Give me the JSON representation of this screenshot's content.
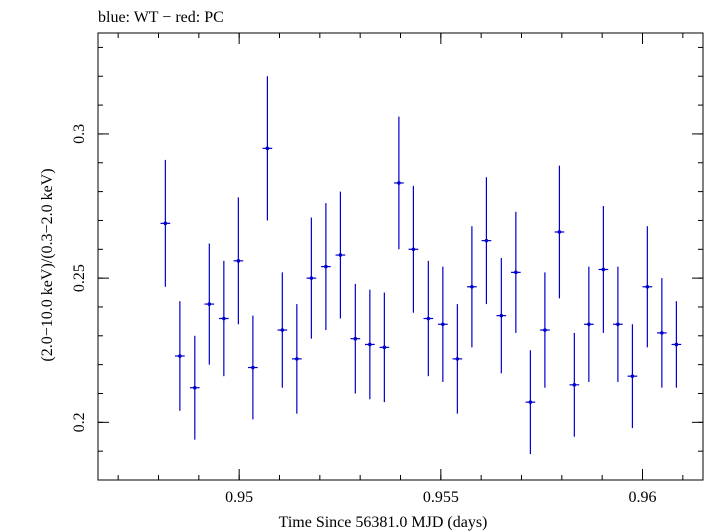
{
  "chart_data": {
    "type": "scatter",
    "title": "blue: WT − red: PC",
    "xlabel": "Time Since 56381.0 MJD (days)",
    "ylabel": "(2.0−10.0 keV)/(0.3−2.0 keV)",
    "xlim": [
      0.9465,
      0.9615
    ],
    "ylim": [
      0.18,
      0.335
    ],
    "x_ticks": [
      {
        "value": 0.95,
        "label": "0.95"
      },
      {
        "value": 0.955,
        "label": "0.955"
      },
      {
        "value": 0.96,
        "label": "0.96"
      }
    ],
    "y_ticks": [
      {
        "value": 0.2,
        "label": "0.2"
      },
      {
        "value": 0.25,
        "label": "0.25"
      },
      {
        "value": 0.3,
        "label": "0.3"
      }
    ],
    "x_minor_step": 0.001,
    "y_minor_step": 0.01,
    "grid": false,
    "series": [
      {
        "color": "#0000cc",
        "points": [
          {
            "x": 0.94817,
            "xerr": 0.00012,
            "y": 0.269,
            "yerr": 0.022
          },
          {
            "x": 0.94853,
            "xerr": 0.00012,
            "y": 0.223,
            "yerr": 0.019
          },
          {
            "x": 0.9489,
            "xerr": 0.00012,
            "y": 0.212,
            "yerr": 0.018
          },
          {
            "x": 0.94926,
            "xerr": 0.00012,
            "y": 0.241,
            "yerr": 0.021
          },
          {
            "x": 0.94962,
            "xerr": 0.00012,
            "y": 0.236,
            "yerr": 0.02
          },
          {
            "x": 0.94998,
            "xerr": 0.00012,
            "y": 0.256,
            "yerr": 0.022
          },
          {
            "x": 0.95034,
            "xerr": 0.00012,
            "y": 0.219,
            "yerr": 0.018
          },
          {
            "x": 0.9507,
            "xerr": 0.00012,
            "y": 0.295,
            "yerr": 0.025
          },
          {
            "x": 0.95107,
            "xerr": 0.00012,
            "y": 0.232,
            "yerr": 0.02
          },
          {
            "x": 0.95143,
            "xerr": 0.00012,
            "y": 0.222,
            "yerr": 0.019
          },
          {
            "x": 0.95179,
            "xerr": 0.00012,
            "y": 0.25,
            "yerr": 0.021
          },
          {
            "x": 0.95215,
            "xerr": 0.00012,
            "y": 0.254,
            "yerr": 0.022
          },
          {
            "x": 0.95251,
            "xerr": 0.00012,
            "y": 0.258,
            "yerr": 0.022
          },
          {
            "x": 0.95288,
            "xerr": 0.00012,
            "y": 0.229,
            "yerr": 0.019
          },
          {
            "x": 0.95324,
            "xerr": 0.00012,
            "y": 0.227,
            "yerr": 0.019
          },
          {
            "x": 0.9536,
            "xerr": 0.00012,
            "y": 0.226,
            "yerr": 0.019
          },
          {
            "x": 0.95396,
            "xerr": 0.00012,
            "y": 0.283,
            "yerr": 0.023
          },
          {
            "x": 0.95432,
            "xerr": 0.00012,
            "y": 0.26,
            "yerr": 0.022
          },
          {
            "x": 0.95469,
            "xerr": 0.00012,
            "y": 0.236,
            "yerr": 0.02
          },
          {
            "x": 0.95505,
            "xerr": 0.00012,
            "y": 0.234,
            "yerr": 0.02
          },
          {
            "x": 0.95541,
            "xerr": 0.00012,
            "y": 0.222,
            "yerr": 0.019
          },
          {
            "x": 0.95577,
            "xerr": 0.00012,
            "y": 0.247,
            "yerr": 0.021
          },
          {
            "x": 0.95613,
            "xerr": 0.00012,
            "y": 0.263,
            "yerr": 0.022
          },
          {
            "x": 0.9565,
            "xerr": 0.00012,
            "y": 0.237,
            "yerr": 0.02
          },
          {
            "x": 0.95686,
            "xerr": 0.00012,
            "y": 0.252,
            "yerr": 0.021
          },
          {
            "x": 0.95722,
            "xerr": 0.00012,
            "y": 0.207,
            "yerr": 0.018
          },
          {
            "x": 0.95758,
            "xerr": 0.00012,
            "y": 0.232,
            "yerr": 0.02
          },
          {
            "x": 0.95794,
            "xerr": 0.00012,
            "y": 0.266,
            "yerr": 0.023
          },
          {
            "x": 0.95831,
            "xerr": 0.00012,
            "y": 0.213,
            "yerr": 0.018
          },
          {
            "x": 0.95867,
            "xerr": 0.00012,
            "y": 0.234,
            "yerr": 0.02
          },
          {
            "x": 0.95903,
            "xerr": 0.00012,
            "y": 0.253,
            "yerr": 0.022
          },
          {
            "x": 0.95939,
            "xerr": 0.00012,
            "y": 0.234,
            "yerr": 0.02
          },
          {
            "x": 0.95975,
            "xerr": 0.00012,
            "y": 0.216,
            "yerr": 0.018
          },
          {
            "x": 0.96012,
            "xerr": 0.00012,
            "y": 0.247,
            "yerr": 0.021
          },
          {
            "x": 0.96048,
            "xerr": 0.00012,
            "y": 0.231,
            "yerr": 0.019
          },
          {
            "x": 0.96084,
            "xerr": 0.00012,
            "y": 0.227,
            "yerr": 0.015
          }
        ]
      }
    ]
  }
}
